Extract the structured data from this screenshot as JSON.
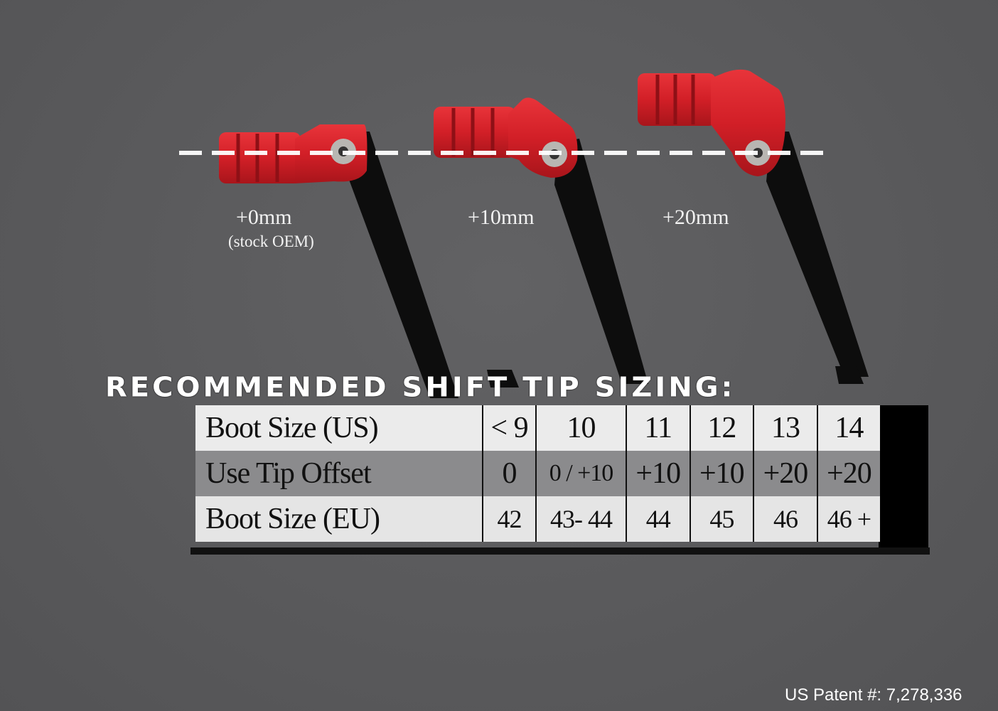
{
  "levers": [
    {
      "label": "+0mm",
      "sublabel": "(stock OEM)"
    },
    {
      "label": "+10mm",
      "sublabel": ""
    },
    {
      "label": "+20mm",
      "sublabel": ""
    }
  ],
  "colors": {
    "tip": "#d8212a",
    "arm": "#0d0d0d",
    "background": "#5b5b5d"
  },
  "title": "RECOMMENDED SHIFT TIP SIZING:",
  "table": {
    "rows": [
      {
        "label": "Boot Size (US)",
        "values": [
          "< 9",
          "10",
          "11",
          "12",
          "13",
          "14"
        ]
      },
      {
        "label": "Use Tip Offset",
        "values": [
          "0",
          "0 / +10",
          "+10",
          "+10",
          "+20",
          "+20"
        ]
      },
      {
        "label": "Boot Size (EU)",
        "values": [
          "42",
          "43- 44",
          "44",
          "45",
          "46",
          "46 +"
        ]
      }
    ]
  },
  "patent": "US Patent #: 7,278,336"
}
